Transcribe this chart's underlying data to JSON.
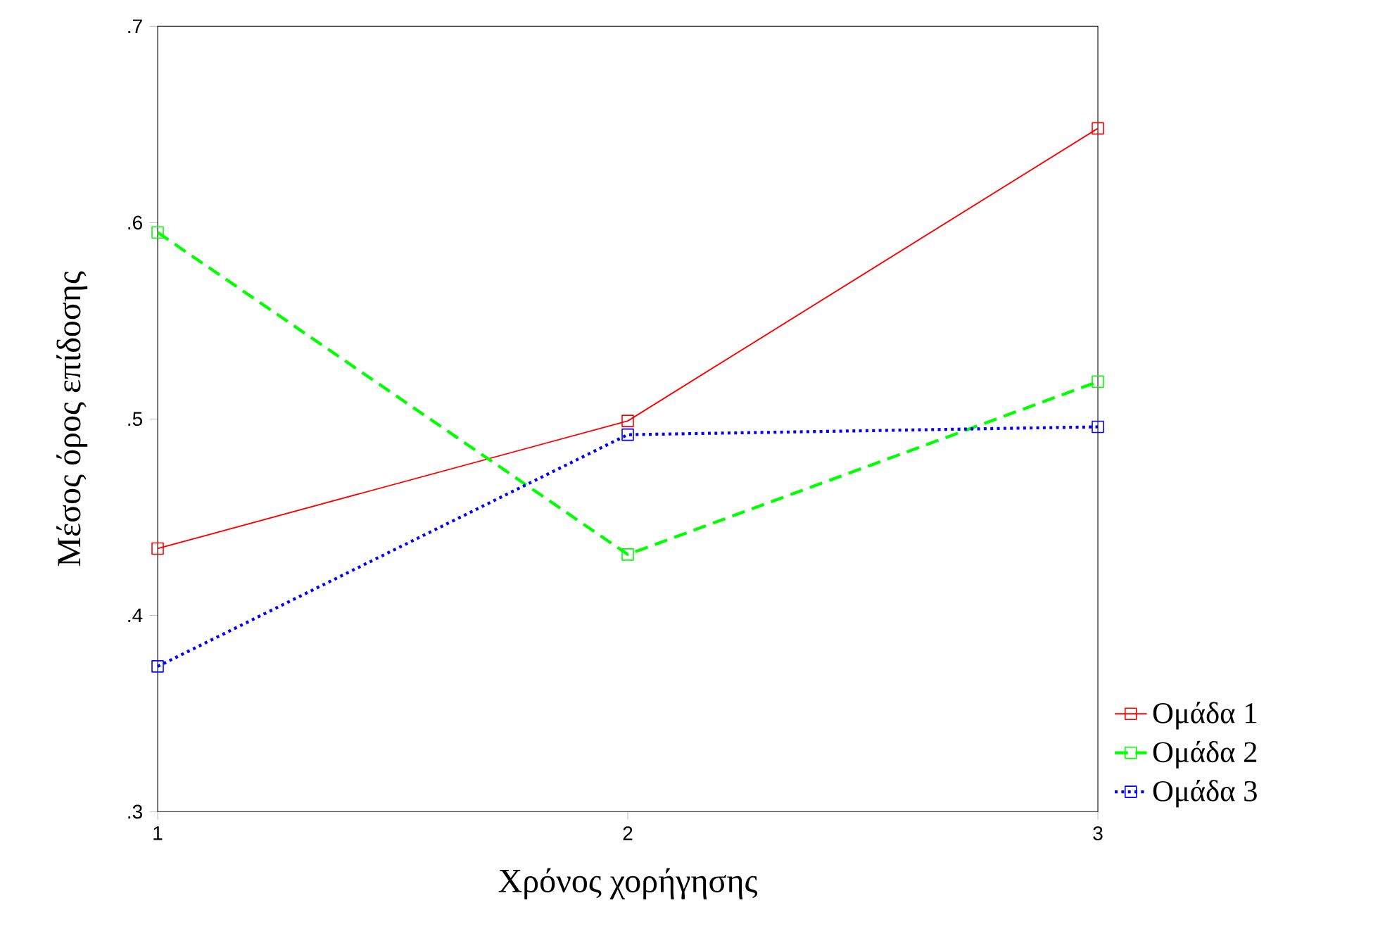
{
  "chart_data": {
    "type": "line",
    "xlabel": "Χρόνος χορήγησης",
    "ylabel": "Μέσος όρος επίδοσης",
    "x": [
      1,
      2,
      3
    ],
    "series": [
      {
        "name": "Ομάδα 1",
        "color": "#ff0000",
        "line_style": "solid",
        "values": [
          0.434,
          0.499,
          0.648
        ]
      },
      {
        "name": "Ομάδα 2",
        "color": "#00ff00",
        "line_style": "dashed",
        "values": [
          0.595,
          0.431,
          0.519
        ]
      },
      {
        "name": "Ομάδα 3",
        "color": "#0000ff",
        "line_style": "dotted",
        "values": [
          0.374,
          0.492,
          0.496
        ]
      }
    ],
    "xlim": [
      1,
      3
    ],
    "xticks": [
      1,
      2,
      3
    ],
    "ylim": [
      0.3,
      0.7
    ],
    "yticks": [
      {
        "value": 0.3,
        "label": ".3"
      },
      {
        "value": 0.4,
        "label": ".4"
      },
      {
        "value": 0.5,
        "label": ".5"
      },
      {
        "value": 0.6,
        "label": ".6"
      },
      {
        "value": 0.7,
        "label": ".7"
      }
    ],
    "marker": "square",
    "grid": false,
    "legend": "bottom right"
  }
}
